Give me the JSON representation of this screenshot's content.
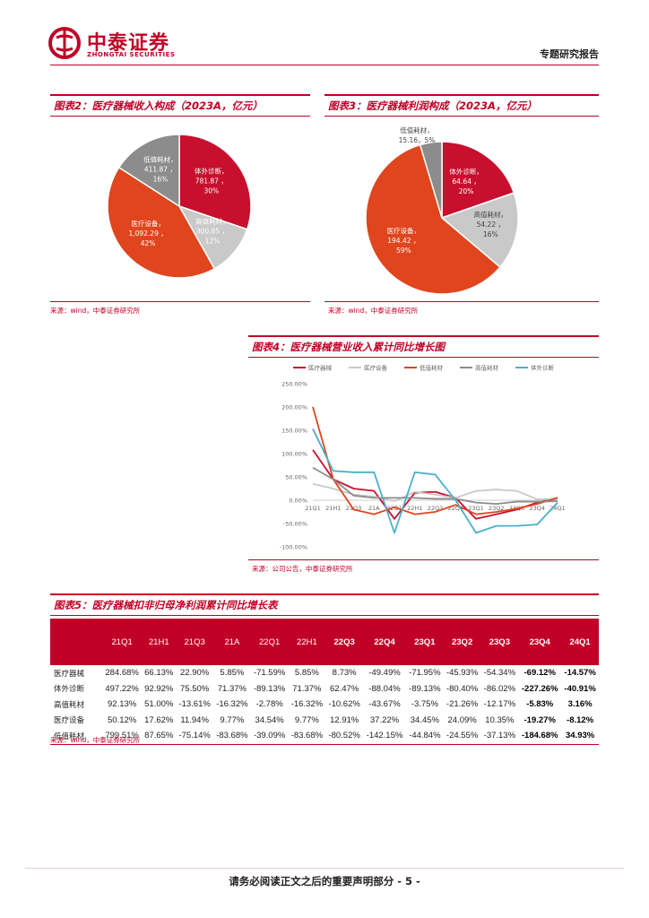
{
  "header": {
    "logo_cn": "中泰证券",
    "logo_en": "ZHONGTAI SECURITIES",
    "report_type": "专题研究报告"
  },
  "colors": {
    "brand_red": "#c00026",
    "pie_red": "#c8102e",
    "pie_orange": "#e0451e",
    "pie_gray": "#8c8c8c",
    "pie_lightgray": "#c9c9c9",
    "line_red": "#c8102e",
    "line_lightgray": "#c9c9c9",
    "line_orange": "#e0451e",
    "line_gray": "#8c8c8c",
    "line_teal": "#4ab0c8"
  },
  "fig2": {
    "title": "图表2：医疗器械收入构成（2023A，亿元）",
    "source": "来源：wind，中泰证券研究所"
  },
  "fig3": {
    "title": "图表3：医疗器械利润构成（2023A，亿元）",
    "source": "来源：wind，中泰证券研究所"
  },
  "fig4": {
    "title": "图表4：医疗器械营业收入累计同比增长图",
    "source": "来源：公司公告，中泰证券研究所"
  },
  "fig5": {
    "title": "图表5：医疗器械扣非归母净利润累计同比增长表",
    "source": "来源：wind，中泰证券研究所",
    "columns": [
      "21Q1",
      "21H1",
      "21Q3",
      "21A",
      "22Q1",
      "22H1",
      "22Q3",
      "22Q4",
      "23Q1",
      "23Q2",
      "23Q3",
      "23Q4",
      "24Q1"
    ],
    "bold_columns": [
      "22Q3",
      "22Q4",
      "23Q1",
      "23Q2",
      "23Q3",
      "23Q4",
      "24Q1"
    ],
    "rows": [
      {
        "name": "医疗器械",
        "values": [
          "284.68%",
          "66.13%",
          "22.90%",
          "5.85%",
          "-71.59%",
          "5.85%",
          "8.73%",
          "-49.49%",
          "-71.95%",
          "-45.93%",
          "-54.34%",
          "-69.12%",
          "-14.57%"
        ]
      },
      {
        "name": "体外诊断",
        "values": [
          "497.22%",
          "92.92%",
          "75.50%",
          "71.37%",
          "-89.13%",
          "71.37%",
          "62.47%",
          "-88.04%",
          "-89.13%",
          "-80.40%",
          "-86.02%",
          "-227.26%",
          "-40.91%"
        ]
      },
      {
        "name": "高值耗材",
        "values": [
          "92.13%",
          "51.00%",
          "-13.61%",
          "-16.32%",
          "-2.78%",
          "-16.32%",
          "-10.62%",
          "-43.67%",
          "-3.75%",
          "-21.26%",
          "-12.17%",
          "-5.83%",
          "3.16%"
        ]
      },
      {
        "name": "医疗设备",
        "values": [
          "50.12%",
          "17.62%",
          "11.94%",
          "9.77%",
          "34.54%",
          "9.77%",
          "12.91%",
          "37.22%",
          "34.45%",
          "24.09%",
          "10.35%",
          "-19.27%",
          "-8.12%"
        ]
      },
      {
        "name": "低值耗材",
        "values": [
          "799.51%",
          "87.65%",
          "-75.14%",
          "-83.68%",
          "-39.09%",
          "-83.68%",
          "-80.52%",
          "-142.15%",
          "-44.84%",
          "-24.55%",
          "-37.13%",
          "-184.68%",
          "34.93%"
        ]
      }
    ]
  },
  "chart_data": [
    {
      "type": "pie",
      "slices": [
        {
          "name": "体外诊断",
          "value": 781.87,
          "value_label": "781.87",
          "pct": "30%",
          "color": "#c8102e"
        },
        {
          "name": "高值耗材",
          "value": 300.85,
          "value_label": "300.85",
          "pct": "12%",
          "color": "#c9c9c9"
        },
        {
          "name": "医疗设备",
          "value": 1092.29,
          "value_label": "1,092.29",
          "pct": "42%",
          "color": "#e0451e"
        },
        {
          "name": "低值耗材",
          "value": 411.87,
          "value_label": "411.87",
          "pct": "16%",
          "color": "#8c8c8c"
        }
      ]
    },
    {
      "type": "pie",
      "slices": [
        {
          "name": "体外诊断",
          "value": 64.64,
          "value_label": "64.64",
          "pct": "20%",
          "color": "#c8102e"
        },
        {
          "name": "高值耗材",
          "value": 54.22,
          "value_label": "54.22",
          "pct": "16%",
          "color": "#c9c9c9"
        },
        {
          "name": "医疗设备",
          "value": 194.42,
          "value_label": "194.42",
          "pct": "59%",
          "color": "#e0451e"
        },
        {
          "name": "低值耗材",
          "value": 15.16,
          "value_label": "15.16",
          "pct": "5%",
          "color": "#8c8c8c"
        }
      ]
    },
    {
      "type": "line",
      "categories": [
        "21Q1",
        "21H1",
        "21Q3",
        "21A",
        "22Q1",
        "22H1",
        "22Q3",
        "22Q4",
        "23Q1",
        "23Q2",
        "23Q3",
        "23Q4",
        "24Q1"
      ],
      "tick_labels": [
        "21Q1",
        "21H1",
        "21Q3",
        "21A",
        "22Q1",
        "22H1",
        "22Q3",
        "22Q4",
        "23Q1",
        "23Q2",
        "23Q3",
        "23Q4",
        "24Q1"
      ],
      "ylim": [
        -100,
        250
      ],
      "yticks": [
        "-100.00%",
        "-50.00%",
        "0.00%",
        "50.00%",
        "100.00%",
        "150.00%",
        "200.00%",
        "250.00%"
      ],
      "legend_placement": "top",
      "series": [
        {
          "name": "医疗器械",
          "color": "#c8102e",
          "values": [
            108,
            45,
            25,
            20,
            -40,
            16,
            18,
            5,
            -40,
            -30,
            -20,
            -5,
            5
          ]
        },
        {
          "name": "医疗设备",
          "color": "#c9c9c9",
          "values": [
            35,
            25,
            12,
            8,
            -2,
            18,
            12,
            5,
            20,
            23,
            20,
            2,
            3
          ]
        },
        {
          "name": "低值耗材",
          "color": "#e0451e",
          "values": [
            200,
            45,
            -20,
            -30,
            -15,
            -30,
            -25,
            -10,
            -30,
            -25,
            -18,
            -8,
            5
          ]
        },
        {
          "name": "高值耗材",
          "color": "#8c8c8c",
          "values": [
            70,
            45,
            10,
            5,
            5,
            5,
            3,
            3,
            -5,
            -8,
            -3,
            -3,
            -2
          ]
        },
        {
          "name": "体外诊断",
          "color": "#4ab0c8",
          "values": [
            153,
            63,
            60,
            60,
            -70,
            60,
            55,
            0,
            -70,
            -55,
            -55,
            -52,
            -5
          ]
        }
      ]
    }
  ],
  "footer": {
    "text": "请务必阅读正文之后的重要声明部分 - 5 -"
  }
}
